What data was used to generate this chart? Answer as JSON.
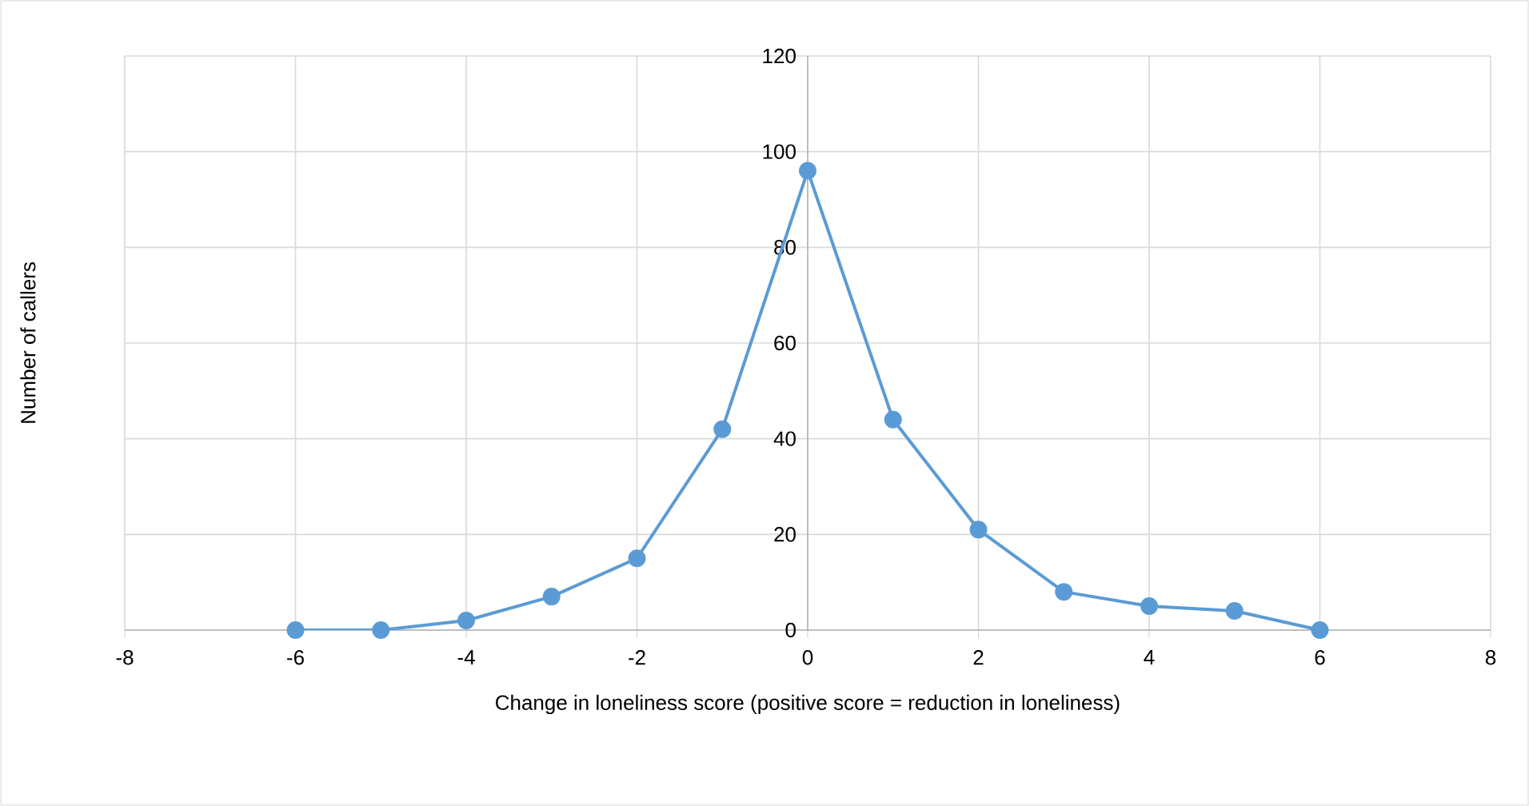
{
  "chart_data": {
    "type": "line",
    "xlabel": "Change in loneliness score (positive score = reduction in loneliness)",
    "ylabel": "Number of callers",
    "x": [
      -6,
      -5,
      -4,
      -3,
      -2,
      -1,
      0,
      1,
      2,
      3,
      4,
      5,
      6
    ],
    "series": [
      {
        "color": "#5b9bd5",
        "values": [
          0,
          0,
          2,
          7,
          15,
          42,
          96,
          44,
          21,
          8,
          5,
          4,
          0
        ]
      }
    ],
    "xlim": [
      -8,
      8
    ],
    "xticks": [
      -8,
      -6,
      -4,
      -2,
      0,
      2,
      4,
      6,
      8
    ],
    "ylim": [
      0,
      120
    ],
    "yticks": [
      0,
      20,
      40,
      60,
      80,
      100,
      120
    ],
    "grid": true,
    "marker": "circle",
    "line_style": "solid"
  }
}
